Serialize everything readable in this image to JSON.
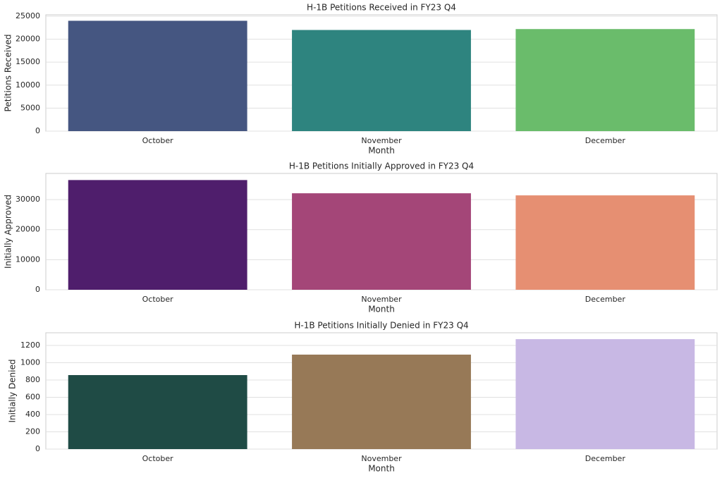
{
  "chart_data": [
    {
      "type": "bar",
      "title": "H-1B Petitions Received in FY23 Q4",
      "xlabel": "Month",
      "ylabel": "Petitions Received",
      "categories": [
        "October",
        "November",
        "December"
      ],
      "values": [
        24000,
        22000,
        22200
      ],
      "colors": [
        "#455681",
        "#2e847f",
        "#6abc6b"
      ],
      "ylim": [
        0,
        25300
      ],
      "yticks": [
        0,
        5000,
        10000,
        15000,
        20000,
        25000
      ],
      "grid": true
    },
    {
      "type": "bar",
      "title": "H-1B Petitions Initially Approved in FY23 Q4",
      "xlabel": "Month",
      "ylabel": "Initially Approved",
      "categories": [
        "October",
        "November",
        "December"
      ],
      "values": [
        36500,
        32100,
        31400
      ],
      "colors": [
        "#4f1e6c",
        "#a44678",
        "#e68f72"
      ],
      "ylim": [
        0,
        38700
      ],
      "yticks": [
        0,
        10000,
        20000,
        30000
      ],
      "grid": true
    },
    {
      "type": "bar",
      "title": "H-1B Petitions Initially Denied in FY23 Q4",
      "xlabel": "Month",
      "ylabel": "Initially Denied",
      "categories": [
        "October",
        "November",
        "December"
      ],
      "values": [
        857,
        1094,
        1273
      ],
      "colors": [
        "#1f4b45",
        "#977957",
        "#c8b8e4"
      ],
      "ylim": [
        0,
        1347
      ],
      "yticks": [
        0,
        200,
        400,
        600,
        800,
        1000,
        1200
      ],
      "grid": true
    }
  ]
}
